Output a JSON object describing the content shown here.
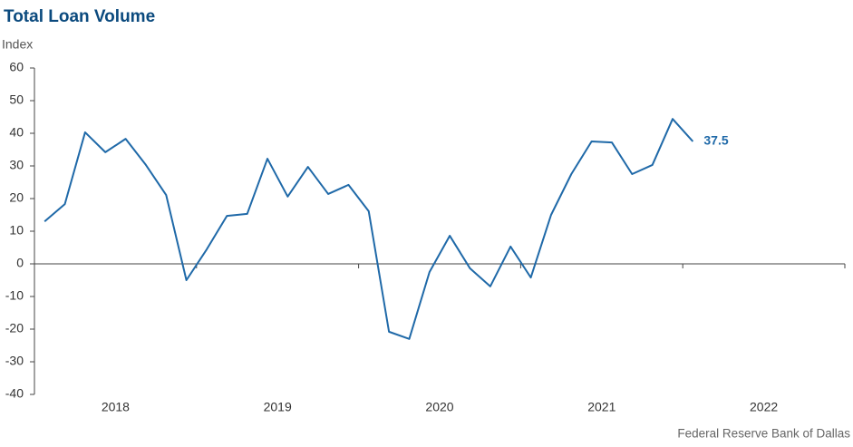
{
  "chart_data": {
    "type": "line",
    "title": "Total Loan Volume",
    "ylabel": "Index",
    "source": "Federal Reserve Bank of Dallas",
    "x": [
      2018.0625,
      2018.1875,
      2018.3125,
      2018.4375,
      2018.5625,
      2018.6875,
      2018.8125,
      2018.9375,
      2019.0625,
      2019.1875,
      2019.3125,
      2019.4375,
      2019.5625,
      2019.6875,
      2019.8125,
      2019.9375,
      2020.0625,
      2020.1875,
      2020.3125,
      2020.4375,
      2020.5625,
      2020.6875,
      2020.8125,
      2020.9375,
      2021.0625,
      2021.1875,
      2021.3125,
      2021.4375,
      2021.5625,
      2021.6875,
      2021.8125,
      2021.9375,
      2022.0625
    ],
    "series": [
      {
        "name": "Total Loan Volume",
        "color": "#1f69a8",
        "values": [
          13,
          18.3,
          40.3,
          34.2,
          38.3,
          30.3,
          21.1,
          -5,
          4.4,
          14.7,
          15.3,
          32.2,
          20.6,
          29.7,
          21.4,
          24.2,
          16.1,
          -20.8,
          -23,
          -2.5,
          8.6,
          -1.4,
          -6.9,
          5.3,
          -4.2,
          15,
          27.5,
          37.5,
          37.2,
          27.5,
          30.3,
          44.4,
          37.5
        ],
        "value_labels": [
          null,
          null,
          null,
          null,
          null,
          null,
          null,
          null,
          null,
          null,
          null,
          null,
          null,
          null,
          null,
          null,
          null,
          null,
          null,
          null,
          null,
          null,
          null,
          null,
          null,
          null,
          null,
          null,
          null,
          null,
          null,
          null,
          "37.5"
        ]
      }
    ],
    "year_labels": [
      "2018",
      "2019",
      "2020",
      "2021",
      "2022"
    ],
    "xlim": [
      2018,
      2023
    ],
    "xticks": [
      2019,
      2020,
      2021,
      2022,
      2023
    ],
    "ylim": [
      -40,
      60
    ],
    "yticks": [
      -40,
      -30,
      -20,
      -10,
      0,
      10,
      20,
      30,
      40,
      50,
      60
    ],
    "grid": false
  }
}
